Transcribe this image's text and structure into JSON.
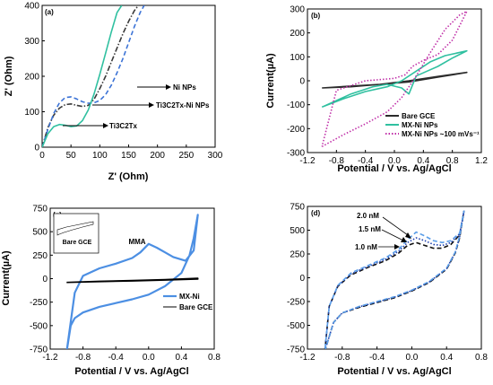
{
  "chart_data": [
    {
      "panel": "(a)",
      "type": "line",
      "xlabel": "Z' (Ohm)",
      "ylabel": "Z' (Ohm)",
      "xlim": [
        0,
        300
      ],
      "ylim": [
        0,
        400
      ],
      "xticks": [
        "0",
        "50",
        "100",
        "150",
        "200",
        "250",
        "300"
      ],
      "yticks": [
        "0",
        "100",
        "200",
        "300",
        "400"
      ],
      "grid": false,
      "annotations": [
        "Ni NPs",
        "Ti3C2Tx-Ni NPs",
        "Ti3C2Tx"
      ],
      "series": [
        {
          "color": "#3a3a3a",
          "dash": "dashdot",
          "x": [
            0,
            10,
            20,
            30,
            40,
            50,
            60,
            70,
            80,
            90,
            100,
            110,
            120,
            130,
            140,
            150,
            160,
            167
          ],
          "y": [
            0,
            55,
            90,
            110,
            120,
            122,
            118,
            115,
            118,
            135,
            165,
            200,
            240,
            280,
            320,
            355,
            385,
            400
          ]
        },
        {
          "color": "#3c73d6",
          "dash": "dash",
          "x": [
            0,
            10,
            20,
            30,
            40,
            50,
            60,
            70,
            80,
            90,
            100,
            110,
            120,
            130,
            140,
            150,
            160,
            170,
            177
          ],
          "y": [
            0,
            50,
            95,
            125,
            140,
            142,
            136,
            128,
            124,
            125,
            132,
            148,
            175,
            210,
            250,
            295,
            340,
            380,
            400
          ]
        },
        {
          "color": "#30c0a0",
          "dash": "solid",
          "x": [
            0,
            10,
            20,
            30,
            40,
            50,
            60,
            70,
            80,
            90,
            100,
            110,
            120,
            130,
            138
          ],
          "y": [
            0,
            38,
            58,
            64,
            62,
            58,
            60,
            75,
            105,
            150,
            205,
            265,
            325,
            380,
            400
          ]
        }
      ]
    },
    {
      "panel": "(b)",
      "type": "line",
      "xlabel": "Potential / V vs. Ag/AgCl",
      "ylabel": "Current(µA)",
      "xlim": [
        -1.2,
        1.2
      ],
      "ylim": [
        -300,
        300
      ],
      "xticks": [
        "-1.2",
        "-0.8",
        "-0.4",
        "0.0",
        "0.4",
        "0.8",
        "1.2"
      ],
      "yticks": [
        "-300",
        "-200",
        "-100",
        "0",
        "100",
        "200",
        "300"
      ],
      "grid": false,
      "legend": {
        "position": "bottom-right"
      },
      "series": [
        {
          "name": "Bare GCE",
          "color": "#2b2b2b",
          "dash": "solid",
          "x": [
            -1.0,
            -0.6,
            -0.2,
            0.2,
            0.6,
            1.0,
            1.0,
            0.6,
            0.2,
            -0.2,
            -0.6,
            -1.0
          ],
          "y": [
            -30,
            -25,
            -15,
            0,
            18,
            35,
            35,
            15,
            -5,
            -15,
            -22,
            -30
          ]
        },
        {
          "name": "MX-Ni NPs",
          "color": "#30c0a0",
          "dash": "solid",
          "x": [
            -1.0,
            -0.7,
            -0.4,
            -0.1,
            0.1,
            0.3,
            0.5,
            0.7,
            1.0,
            1.0,
            0.8,
            0.6,
            0.45,
            0.3,
            0.2,
            0.1,
            -0.1,
            -0.3,
            -0.6,
            -1.0
          ],
          "y": [
            -110,
            -75,
            -45,
            -25,
            0,
            40,
            80,
            105,
            125,
            125,
            95,
            60,
            40,
            20,
            -55,
            -30,
            -15,
            -25,
            -55,
            -110
          ]
        },
        {
          "name": "MX-Ni NPs ~100 mVs⁻¹",
          "color": "#c030a8",
          "dash": "dot",
          "x": [
            -1.0,
            -0.7,
            -0.4,
            -0.1,
            0.1,
            0.3,
            0.5,
            0.7,
            0.9,
            1.0,
            1.0,
            0.8,
            0.6,
            0.4,
            0.25,
            0.15,
            0.0,
            -0.2,
            -0.4,
            -0.6,
            -0.8,
            -1.0
          ],
          "y": [
            -275,
            -225,
            -180,
            -130,
            -70,
            20,
            120,
            215,
            275,
            290,
            290,
            170,
            110,
            85,
            60,
            25,
            10,
            5,
            0,
            -20,
            -40,
            -275
          ]
        }
      ]
    },
    {
      "panel": "(c)",
      "type": "line",
      "xlabel": "Potential / V vs. Ag/AgCl",
      "ylabel": "Current(µA)",
      "xlim": [
        -1.2,
        0.8
      ],
      "ylim": [
        -750,
        750
      ],
      "xticks": [
        "-1.2",
        "-0.8",
        "-0.4",
        "0.0",
        "0.4",
        "0.8"
      ],
      "yticks": [
        "-750",
        "-500",
        "-250",
        "0",
        "250",
        "500",
        "750"
      ],
      "grid": false,
      "legend": {
        "position": "bottom-right"
      },
      "annotations": [
        "MMA"
      ],
      "inset_legend": "Bare GCE",
      "series": [
        {
          "name": "MX-Ni",
          "color": "#4c8fe3",
          "dash": "solid",
          "x": [
            -1.0,
            -0.95,
            -0.9,
            -0.8,
            -0.6,
            -0.4,
            -0.2,
            0.0,
            0.2,
            0.4,
            0.5,
            0.55,
            0.6,
            0.6,
            0.55,
            0.45,
            0.3,
            0.2,
            0.1,
            0.0,
            -0.1,
            -0.2,
            -0.4,
            -0.6,
            -0.8,
            -0.9,
            -1.0
          ],
          "y": [
            -780,
            -500,
            -420,
            -360,
            -300,
            -260,
            -220,
            -170,
            -80,
            60,
            250,
            430,
            680,
            680,
            300,
            190,
            230,
            280,
            330,
            370,
            280,
            220,
            160,
            110,
            30,
            -150,
            -780
          ]
        },
        {
          "name": "Bare GCE",
          "color": "#000000",
          "dash": "solid",
          "x": [
            -1.0,
            -0.6,
            -0.2,
            0.2,
            0.6,
            0.6,
            0.2,
            -0.2,
            -0.6,
            -1.0
          ],
          "y": [
            -40,
            -32,
            -25,
            -15,
            -5,
            5,
            -10,
            -20,
            -28,
            -40
          ]
        }
      ]
    },
    {
      "panel": "(d)",
      "type": "line",
      "xlabel": "Potential / V vs. Ag/AgCl",
      "ylabel": "",
      "xlim": [
        -1.2,
        0.8
      ],
      "ylim": [
        -750,
        750
      ],
      "xticks": [
        "-1.2",
        "-0.8",
        "-0.4",
        "0.0",
        "0.4",
        "0.8"
      ],
      "yticks": [
        "-750",
        "-500",
        "-250",
        "0",
        "250",
        "500",
        "750"
      ],
      "grid": false,
      "annotations": [
        "2.0 nM",
        "1.5 nM",
        "1.0 nM"
      ],
      "series": [
        {
          "color": "#101010",
          "dash": "dash",
          "x": [
            -1.0,
            -0.9,
            -0.8,
            -0.6,
            -0.4,
            -0.2,
            0.0,
            0.2,
            0.4,
            0.5,
            0.55,
            0.6,
            0.6,
            0.55,
            0.45,
            0.35,
            0.25,
            0.15,
            0.05,
            -0.05,
            -0.15,
            -0.3,
            -0.5,
            -0.7,
            -0.85,
            -0.95,
            -1.0
          ],
          "y": [
            -770,
            -470,
            -370,
            -310,
            -260,
            -210,
            -140,
            -50,
            90,
            260,
            420,
            700,
            700,
            450,
            350,
            310,
            310,
            340,
            370,
            340,
            260,
            180,
            110,
            30,
            -90,
            -300,
            -770
          ]
        },
        {
          "color": "#1d3fae",
          "dash": "dot",
          "x": [
            -1.0,
            -0.9,
            -0.8,
            -0.6,
            -0.4,
            -0.2,
            0.0,
            0.2,
            0.4,
            0.5,
            0.55,
            0.6,
            0.6,
            0.55,
            0.45,
            0.35,
            0.25,
            0.15,
            0.05,
            -0.05,
            -0.15,
            -0.3,
            -0.5,
            -0.7,
            -0.85,
            -0.95,
            -1.0
          ],
          "y": [
            -770,
            -470,
            -370,
            -305,
            -255,
            -205,
            -135,
            -45,
            95,
            265,
            430,
            700,
            700,
            460,
            370,
            340,
            350,
            390,
            420,
            370,
            280,
            195,
            120,
            40,
            -85,
            -300,
            -770
          ]
        },
        {
          "color": "#5a9de8",
          "dash": "dash",
          "x": [
            -1.0,
            -0.9,
            -0.8,
            -0.6,
            -0.4,
            -0.2,
            0.0,
            0.2,
            0.4,
            0.5,
            0.55,
            0.6,
            0.6,
            0.55,
            0.45,
            0.35,
            0.25,
            0.15,
            0.05,
            -0.05,
            -0.15,
            -0.3,
            -0.5,
            -0.7,
            -0.85,
            -0.95,
            -1.0
          ],
          "y": [
            -770,
            -470,
            -370,
            -300,
            -250,
            -200,
            -130,
            -40,
            100,
            270,
            440,
            700,
            700,
            470,
            390,
            370,
            390,
            440,
            480,
            400,
            300,
            210,
            130,
            50,
            -80,
            -300,
            -770
          ]
        }
      ]
    }
  ]
}
